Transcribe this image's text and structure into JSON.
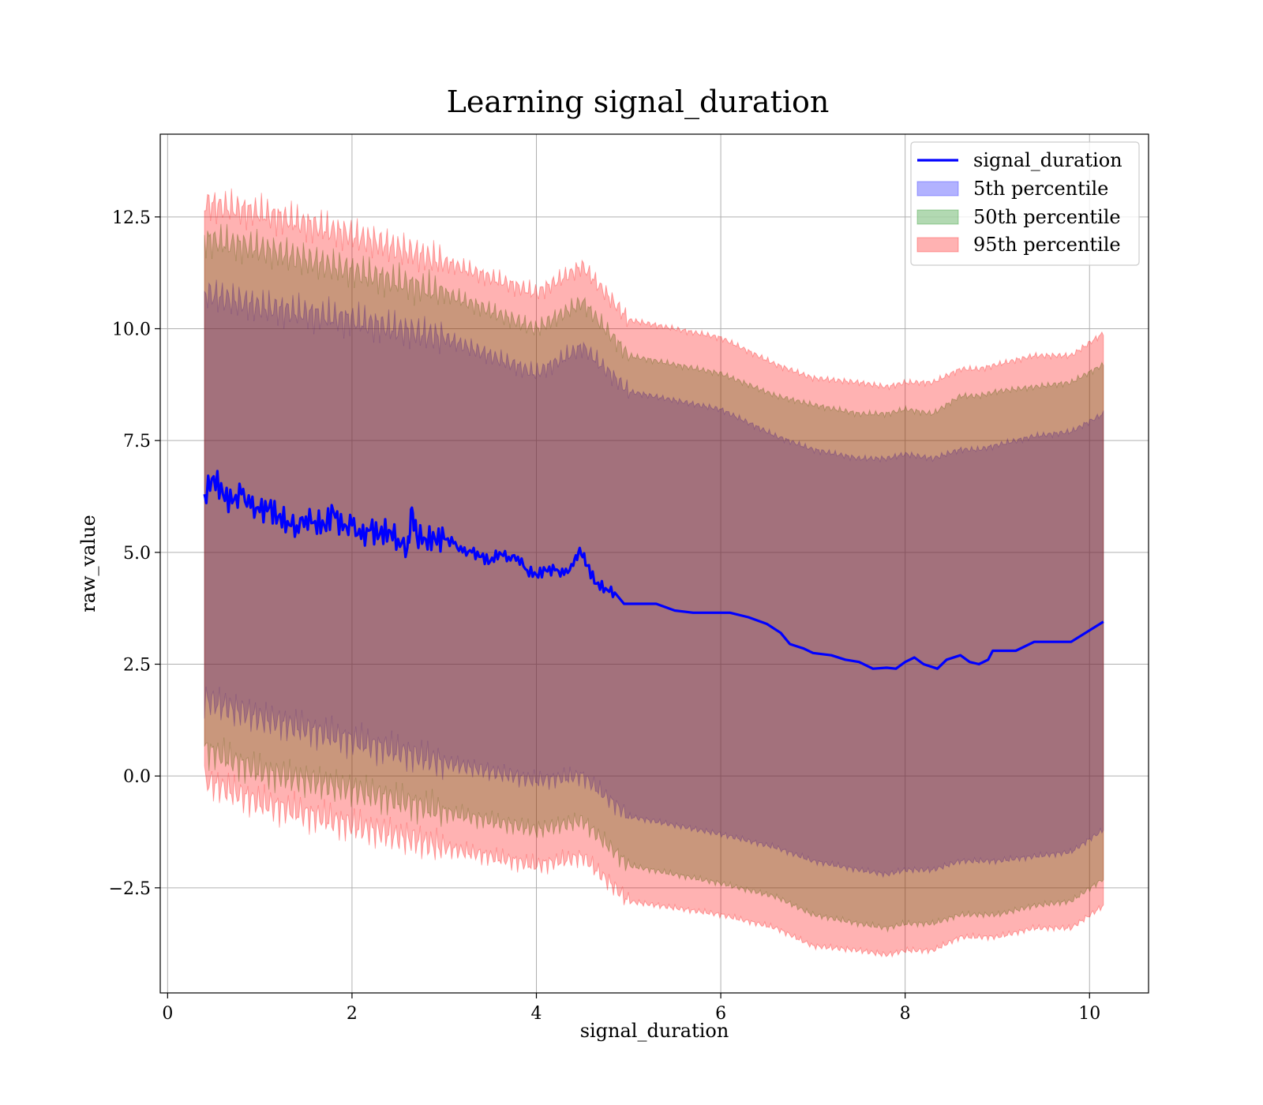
{
  "chart_data": {
    "type": "line",
    "title": "Learning signal_duration",
    "xlabel": "signal_duration",
    "ylabel": "raw_value",
    "xlim": [
      -0.08,
      10.64
    ],
    "ylim": [
      -4.85,
      14.35
    ],
    "grid": true,
    "legend_position": "top-right",
    "x_ticks": [
      0,
      2,
      4,
      6,
      8,
      10
    ],
    "x_tick_labels": [
      "0",
      "2",
      "4",
      "6",
      "8",
      "10"
    ],
    "y_ticks": [
      -2.5,
      0.0,
      2.5,
      5.0,
      7.5,
      10.0,
      12.5
    ],
    "y_tick_labels": [
      "−2.5",
      "0.0",
      "2.5",
      "5.0",
      "7.5",
      "10.0",
      "12.5"
    ],
    "line": {
      "name": "signal_duration",
      "color": "#0000ff",
      "points": [
        [
          0.4,
          6.3
        ],
        [
          0.5,
          6.7
        ],
        [
          0.6,
          6.3
        ],
        [
          0.7,
          6.1
        ],
        [
          0.8,
          6.3
        ],
        [
          0.9,
          6.0
        ],
        [
          1.0,
          5.9
        ],
        [
          1.1,
          6.0
        ],
        [
          1.2,
          5.8
        ],
        [
          1.3,
          5.7
        ],
        [
          1.4,
          5.6
        ],
        [
          1.5,
          5.8
        ],
        [
          1.6,
          5.7
        ],
        [
          1.7,
          5.6
        ],
        [
          1.8,
          5.9
        ],
        [
          1.9,
          5.5
        ],
        [
          2.0,
          5.6
        ],
        [
          2.1,
          5.3
        ],
        [
          2.2,
          5.5
        ],
        [
          2.3,
          5.4
        ],
        [
          2.4,
          5.5
        ],
        [
          2.5,
          5.3
        ],
        [
          2.6,
          5.1
        ],
        [
          2.65,
          6.0
        ],
        [
          2.7,
          5.4
        ],
        [
          2.8,
          5.3
        ],
        [
          2.9,
          5.3
        ],
        [
          3.0,
          5.3
        ],
        [
          3.1,
          5.2
        ],
        [
          3.2,
          5.0
        ],
        [
          3.3,
          5.0
        ],
        [
          3.4,
          4.9
        ],
        [
          3.5,
          4.8
        ],
        [
          3.6,
          5.0
        ],
        [
          3.7,
          4.9
        ],
        [
          3.8,
          4.9
        ],
        [
          3.9,
          4.6
        ],
        [
          4.0,
          4.5
        ],
        [
          4.1,
          4.6
        ],
        [
          4.2,
          4.6
        ],
        [
          4.3,
          4.5
        ],
        [
          4.4,
          4.7
        ],
        [
          4.47,
          5.1
        ],
        [
          4.55,
          4.7
        ],
        [
          4.65,
          4.3
        ],
        [
          4.75,
          4.2
        ],
        [
          4.85,
          4.1
        ],
        [
          4.95,
          3.85
        ],
        [
          5.1,
          3.85
        ],
        [
          5.3,
          3.85
        ],
        [
          5.5,
          3.7
        ],
        [
          5.7,
          3.65
        ],
        [
          5.9,
          3.65
        ],
        [
          6.1,
          3.65
        ],
        [
          6.3,
          3.55
        ],
        [
          6.5,
          3.4
        ],
        [
          6.65,
          3.2
        ],
        [
          6.75,
          2.95
        ],
        [
          6.9,
          2.85
        ],
        [
          7.0,
          2.75
        ],
        [
          7.2,
          2.7
        ],
        [
          7.35,
          2.6
        ],
        [
          7.5,
          2.55
        ],
        [
          7.65,
          2.4
        ],
        [
          7.8,
          2.42
        ],
        [
          7.9,
          2.4
        ],
        [
          8.0,
          2.55
        ],
        [
          8.1,
          2.65
        ],
        [
          8.2,
          2.5
        ],
        [
          8.35,
          2.4
        ],
        [
          8.45,
          2.6
        ],
        [
          8.6,
          2.7
        ],
        [
          8.7,
          2.55
        ],
        [
          8.8,
          2.5
        ],
        [
          8.9,
          2.6
        ],
        [
          8.95,
          2.8
        ],
        [
          9.2,
          2.8
        ],
        [
          9.4,
          3.0
        ],
        [
          9.6,
          3.0
        ],
        [
          9.8,
          3.0
        ],
        [
          10.15,
          3.45
        ]
      ]
    },
    "bands": [
      {
        "name": "5th percentile",
        "color": "#0000ff",
        "alpha": 0.3,
        "x": [
          0.4,
          1.0,
          2.0,
          3.0,
          4.0,
          4.5,
          5.0,
          6.0,
          6.6,
          7.0,
          7.5,
          7.8,
          8.0,
          8.3,
          8.6,
          8.8,
          9.0,
          9.4,
          9.8,
          10.15
        ],
        "upper": [
          10.8,
          10.5,
          10.2,
          9.8,
          9.0,
          9.6,
          8.6,
          8.2,
          7.6,
          7.3,
          7.1,
          7.1,
          7.2,
          7.1,
          7.3,
          7.3,
          7.4,
          7.6,
          7.7,
          8.1
        ],
        "lower": [
          1.7,
          1.3,
          0.8,
          0.3,
          -0.1,
          0.0,
          -0.9,
          -1.3,
          -1.6,
          -1.9,
          -2.1,
          -2.2,
          -2.1,
          -2.1,
          -1.9,
          -1.9,
          -1.9,
          -1.8,
          -1.7,
          -1.2
        ]
      },
      {
        "name": "50th percentile",
        "color": "#008000",
        "alpha": 0.3,
        "x": [
          0.4,
          1.0,
          2.0,
          3.0,
          4.0,
          4.5,
          5.0,
          6.0,
          6.6,
          7.0,
          7.5,
          7.8,
          8.0,
          8.3,
          8.6,
          8.8,
          9.0,
          9.4,
          9.8,
          10.15
        ],
        "upper": [
          12.0,
          11.8,
          11.3,
          10.8,
          10.0,
          10.6,
          9.4,
          9.0,
          8.5,
          8.3,
          8.1,
          8.1,
          8.2,
          8.1,
          8.5,
          8.5,
          8.6,
          8.7,
          8.8,
          9.2
        ],
        "lower": [
          0.6,
          0.1,
          -0.3,
          -0.8,
          -1.2,
          -1.0,
          -2.0,
          -2.4,
          -2.7,
          -3.1,
          -3.3,
          -3.4,
          -3.3,
          -3.3,
          -3.1,
          -3.1,
          -3.1,
          -2.9,
          -2.8,
          -2.3
        ]
      },
      {
        "name": "95th percentile",
        "color": "#ff0000",
        "alpha": 0.3,
        "x": [
          0.4,
          1.0,
          2.0,
          3.0,
          4.0,
          4.5,
          5.0,
          6.0,
          6.6,
          7.0,
          7.5,
          7.8,
          8.0,
          8.3,
          8.6,
          8.8,
          9.0,
          9.4,
          9.8,
          10.15
        ],
        "upper": [
          12.8,
          12.6,
          12.1,
          11.5,
          10.8,
          11.4,
          10.2,
          9.8,
          9.2,
          8.9,
          8.8,
          8.7,
          8.8,
          8.8,
          9.1,
          9.1,
          9.2,
          9.4,
          9.4,
          9.9
        ],
        "lower": [
          -0.1,
          -0.6,
          -1.1,
          -1.6,
          -2.0,
          -1.8,
          -2.8,
          -3.1,
          -3.4,
          -3.8,
          -3.9,
          -4.0,
          -3.9,
          -3.9,
          -3.6,
          -3.6,
          -3.6,
          -3.4,
          -3.4,
          -2.9
        ]
      }
    ],
    "legend": [
      {
        "label": "signal_duration",
        "kind": "line",
        "color": "#0000ff"
      },
      {
        "label": "5th percentile",
        "kind": "patch",
        "color": "#0000ff"
      },
      {
        "label": "50th percentile",
        "kind": "patch",
        "color": "#008000"
      },
      {
        "label": "95th percentile",
        "kind": "patch",
        "color": "#ff0000"
      }
    ]
  }
}
